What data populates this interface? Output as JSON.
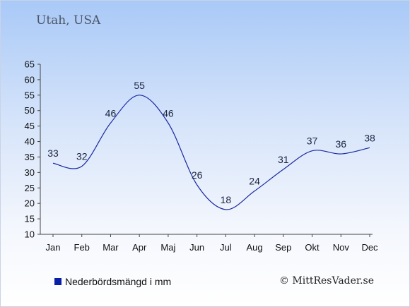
{
  "header": {
    "title": "Utah, USA"
  },
  "legend": {
    "label": "Nederbördsmängd i mm",
    "swatch_color": "#0a1fa8"
  },
  "credit": {
    "text": "© MittResVader.se"
  },
  "chart_data": {
    "type": "line",
    "title": "Utah, USA",
    "xlabel": "",
    "ylabel": "",
    "categories": [
      "Jan",
      "Feb",
      "Mar",
      "Apr",
      "Maj",
      "Jun",
      "Jul",
      "Aug",
      "Sep",
      "Okt",
      "Nov",
      "Dec"
    ],
    "series": [
      {
        "name": "Nederbördsmängd i mm",
        "values": [
          33,
          32,
          46,
          55,
          46,
          26,
          18,
          24,
          31,
          37,
          36,
          38
        ],
        "color": "#1a2aa0"
      }
    ],
    "ylim": [
      10,
      65
    ],
    "yticks": [
      10,
      15,
      20,
      25,
      30,
      35,
      40,
      45,
      50,
      55,
      60,
      65
    ],
    "grid": false,
    "data_labels": true,
    "legend_position": "bottom-left"
  }
}
